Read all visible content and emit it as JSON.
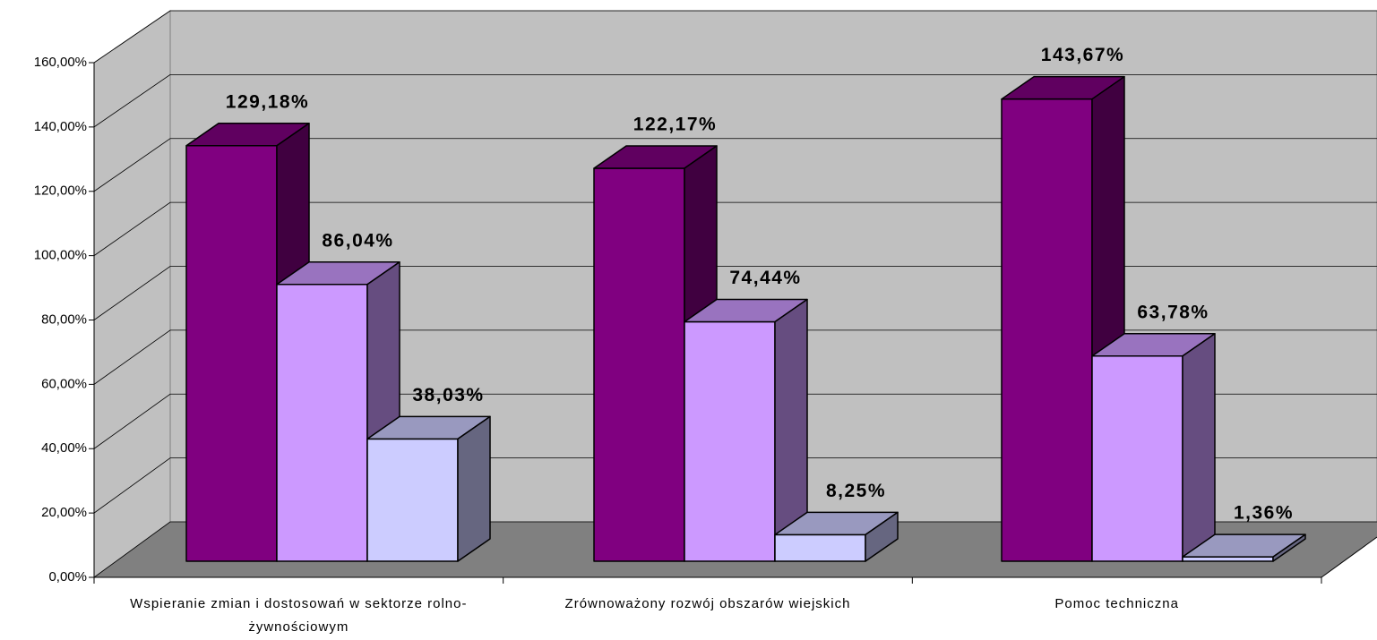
{
  "chart_data": {
    "type": "bar3d",
    "categories": [
      "Wspieranie zmian i dostosowań w sektorze rolno-żywnościowym",
      "Zrównoważony rozwój obszarów wiejskich",
      "Pomoc techniczna"
    ],
    "series": [
      {
        "color": "#800080",
        "values": [
          129.18,
          122.17,
          143.67
        ],
        "value_labels": [
          "129,18%",
          "122,17%",
          "143,67%"
        ]
      },
      {
        "color": "#cc99ff",
        "values": [
          86.04,
          74.44,
          63.78
        ],
        "value_labels": [
          "86,04%",
          "74,44%",
          "63,78%"
        ]
      },
      {
        "color": "#ccccff",
        "values": [
          38.03,
          8.25,
          1.36
        ],
        "value_labels": [
          "38,03%",
          "8,25%",
          "1,36%"
        ]
      }
    ],
    "ylim": [
      0,
      160
    ],
    "yticks": [
      {
        "value": 0,
        "label": "0,00%"
      },
      {
        "value": 20,
        "label": "20,00%"
      },
      {
        "value": 40,
        "label": "40,00%"
      },
      {
        "value": 60,
        "label": "60,00%"
      },
      {
        "value": 80,
        "label": "80,00%"
      },
      {
        "value": 100,
        "label": "100,00%"
      },
      {
        "value": 120,
        "label": "120,00%"
      },
      {
        "value": 140,
        "label": "140,00%"
      },
      {
        "value": 160,
        "label": "160,00%"
      }
    ],
    "grid": true
  }
}
